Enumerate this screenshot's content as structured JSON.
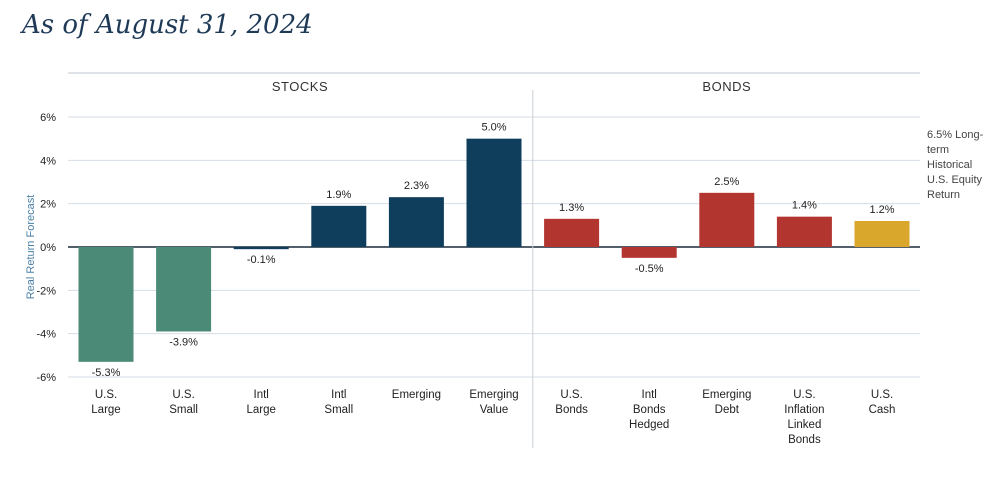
{
  "title": "As of August 31, 2024",
  "chart_data": {
    "type": "bar",
    "ylabel": "Real Return Forecast",
    "ylim": [
      -6,
      6
    ],
    "yticks": [
      6,
      4,
      2,
      0,
      -2,
      -4,
      -6
    ],
    "ytick_labels": [
      "6%",
      "4%",
      "2%",
      "0%",
      "-2%",
      "-4%",
      "-6%"
    ],
    "grid": true,
    "groups": [
      {
        "name": "STOCKS",
        "start": 0,
        "end": 5
      },
      {
        "name": "BONDS",
        "start": 6,
        "end": 10
      }
    ],
    "categories": [
      [
        "U.S.",
        "Large"
      ],
      [
        "U.S.",
        "Small"
      ],
      [
        "Intl",
        "Large"
      ],
      [
        "Intl",
        "Small"
      ],
      [
        "Emerging"
      ],
      [
        "Emerging",
        "Value"
      ],
      [
        "U.S.",
        "Bonds"
      ],
      [
        "Intl",
        "Bonds",
        "Hedged"
      ],
      [
        "Emerging",
        "Debt"
      ],
      [
        "U.S.",
        "Inflation",
        "Linked",
        "Bonds"
      ],
      [
        "U.S.",
        "Cash"
      ]
    ],
    "values": [
      -5.3,
      -3.9,
      -0.1,
      1.9,
      2.3,
      5.0,
      1.3,
      -0.5,
      2.5,
      1.4,
      1.2
    ],
    "data_labels": [
      "-5.3%",
      "-3.9%",
      "-0.1%",
      "1.9%",
      "2.3%",
      "5.0%",
      "1.3%",
      "-0.5%",
      "2.5%",
      "1.4%",
      "1.2%"
    ],
    "colors": {
      "negative_stock": "#4c8a78",
      "stock": "#0f3d5c",
      "bond": "#b23530",
      "cash": "#d9a72b"
    },
    "bar_colors": [
      "#4c8a78",
      "#4c8a78",
      "#0f3d5c",
      "#0f3d5c",
      "#0f3d5c",
      "#0f3d5c",
      "#b23530",
      "#b23530",
      "#b23530",
      "#b23530",
      "#d9a72b"
    ],
    "reference_line": {
      "value": 6.5,
      "label": [
        "6.5% Long-",
        "term",
        "Historical",
        "U.S. Equity",
        "Return"
      ]
    }
  }
}
